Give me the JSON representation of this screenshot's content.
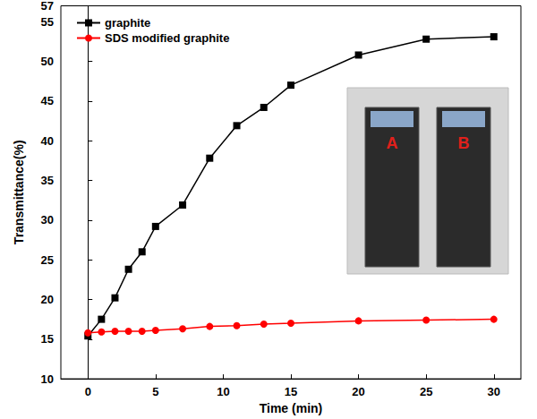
{
  "chart_data": {
    "type": "line",
    "x_label": "Time (min)",
    "y_label": "Transmittance(%)",
    "x": [
      0,
      1,
      2,
      3,
      4,
      5,
      7,
      9,
      11,
      13,
      15,
      20,
      25,
      30
    ],
    "series": [
      {
        "name": "graphite",
        "color": "#000000",
        "marker": "square",
        "values": [
          15.4,
          17.5,
          20.2,
          23.8,
          26.0,
          29.2,
          31.9,
          37.8,
          41.9,
          44.2,
          47.0,
          50.8,
          52.8,
          53.1
        ]
      },
      {
        "name": "SDS modified graphite",
        "color": "#ff0000",
        "marker": "circle",
        "values": [
          15.8,
          15.9,
          16.0,
          16.0,
          16.0,
          16.1,
          16.3,
          16.6,
          16.7,
          16.9,
          17.0,
          17.3,
          17.4,
          17.5
        ]
      }
    ],
    "xlim": [
      -2,
      32
    ],
    "xticks": [
      0,
      5,
      10,
      15,
      20,
      25,
      30
    ],
    "ylim": [
      10,
      57
    ],
    "yticks": [
      10,
      15,
      20,
      25,
      30,
      35,
      40,
      45,
      50,
      55
    ],
    "grid": false,
    "legend": "upper left",
    "annotations": [
      "A",
      "B"
    ]
  }
}
